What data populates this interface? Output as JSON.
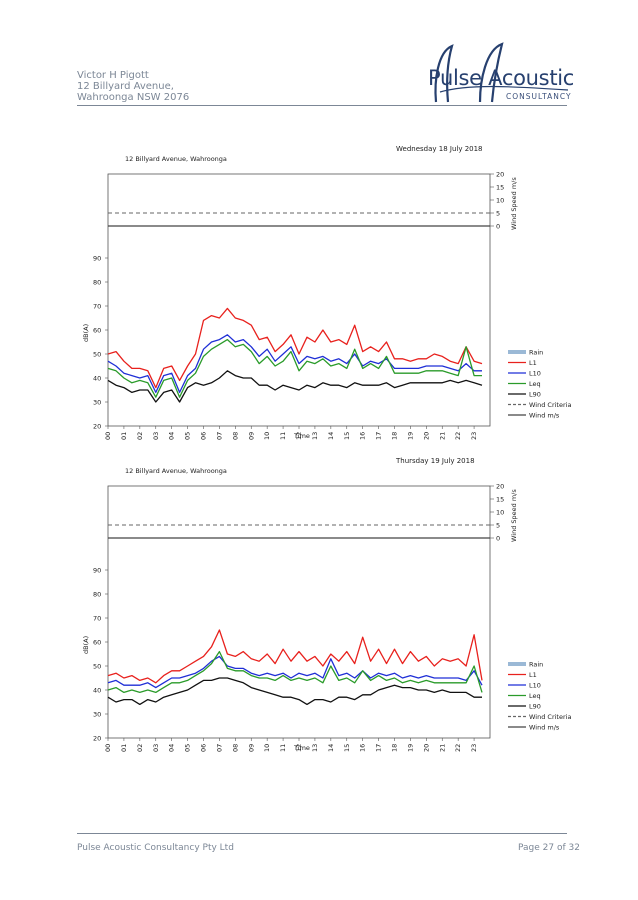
{
  "header": {
    "address_lines": [
      "Victor H Pigott",
      "12 Billyard Avenue,",
      "Wahroonga  NSW  2076"
    ],
    "logo": {
      "brand": "Pulse Acoustic",
      "sub": "CONSULTANCY"
    }
  },
  "footer": {
    "company": "Pulse Acoustic Consultancy Pty Ltd",
    "page": "Page 27 of 32"
  },
  "colors": {
    "rain": "#9bb9d6",
    "L1": "#e8211d",
    "L10": "#1f2fd6",
    "Leq": "#2a9b2a",
    "L90": "#111111",
    "wind_criteria": "#666666",
    "wind": "#444444",
    "text_muted": "#7c8796"
  },
  "chart_data": [
    {
      "type": "line",
      "title": "Wednesday 18 July 2018",
      "location": "12 Billyard Avenue, Wahroonga",
      "xlabel": "Time",
      "ylabel": "dB(A)",
      "y2label": "Wind Speed m/s",
      "ylim": [
        20,
        100
      ],
      "yticks": [
        20,
        30,
        40,
        50,
        60,
        70,
        80,
        90
      ],
      "y2lim": [
        0,
        20
      ],
      "y2ticks": [
        0,
        5,
        10,
        15,
        20
      ],
      "xticks": [
        "00",
        "01",
        "02",
        "03",
        "04",
        "05",
        "06",
        "07",
        "08",
        "09",
        "10",
        "11",
        "12",
        "13",
        "14",
        "15",
        "16",
        "17",
        "18",
        "19",
        "20",
        "21",
        "22",
        "23"
      ],
      "legend": [
        "Rain",
        "L1",
        "L10",
        "Leq",
        "L90",
        "Wind Criteria",
        "Wind m/s"
      ],
      "legend_position": "right",
      "wind_criteria": 5,
      "wind": [
        0
      ],
      "series": [
        {
          "name": "L1",
          "x": [
            0,
            0.5,
            1,
            1.5,
            2,
            2.5,
            3,
            3.5,
            4,
            4.5,
            5,
            5.5,
            6,
            6.5,
            7,
            7.5,
            8,
            8.5,
            9,
            9.5,
            10,
            10.5,
            11,
            11.5,
            12,
            12.5,
            13,
            13.5,
            14,
            14.5,
            15,
            15.5,
            16,
            16.5,
            17,
            17.5,
            18,
            18.5,
            19,
            19.5,
            20,
            20.5,
            21,
            21.5,
            22,
            22.5,
            23,
            23.5
          ],
          "values": [
            50,
            51,
            47,
            44,
            44,
            43,
            36,
            44,
            45,
            39,
            45,
            50,
            64,
            66,
            65,
            69,
            65,
            64,
            62,
            56,
            57,
            51,
            54,
            58,
            50,
            57,
            55,
            60,
            55,
            56,
            54,
            62,
            51,
            53,
            51,
            55,
            48,
            48,
            47,
            48,
            48,
            50,
            49,
            47,
            46,
            53,
            47,
            46
          ]
        },
        {
          "name": "L10",
          "x": [
            0,
            0.5,
            1,
            1.5,
            2,
            2.5,
            3,
            3.5,
            4,
            4.5,
            5,
            5.5,
            6,
            6.5,
            7,
            7.5,
            8,
            8.5,
            9,
            9.5,
            10,
            10.5,
            11,
            11.5,
            12,
            12.5,
            13,
            13.5,
            14,
            14.5,
            15,
            15.5,
            16,
            16.5,
            17,
            17.5,
            18,
            18.5,
            19,
            19.5,
            20,
            20.5,
            21,
            21.5,
            22,
            22.5,
            23,
            23.5
          ],
          "values": [
            47,
            45,
            42,
            41,
            40,
            41,
            34,
            41,
            42,
            34,
            41,
            44,
            52,
            55,
            56,
            58,
            55,
            56,
            53,
            49,
            52,
            47,
            50,
            53,
            46,
            49,
            48,
            49,
            47,
            48,
            46,
            50,
            45,
            47,
            46,
            48,
            44,
            44,
            44,
            44,
            45,
            45,
            45,
            44,
            43,
            46,
            43,
            43
          ]
        },
        {
          "name": "Leq",
          "x": [
            0,
            0.5,
            1,
            1.5,
            2,
            2.5,
            3,
            3.5,
            4,
            4.5,
            5,
            5.5,
            6,
            6.5,
            7,
            7.5,
            8,
            8.5,
            9,
            9.5,
            10,
            10.5,
            11,
            11.5,
            12,
            12.5,
            13,
            13.5,
            14,
            14.5,
            15,
            15.5,
            16,
            16.5,
            17,
            17.5,
            18,
            18.5,
            19,
            19.5,
            20,
            20.5,
            21,
            21.5,
            22,
            22.5,
            23,
            23.5
          ],
          "values": [
            44,
            43,
            40,
            38,
            39,
            38,
            32,
            39,
            40,
            32,
            39,
            42,
            49,
            52,
            54,
            56,
            53,
            54,
            51,
            46,
            49,
            45,
            47,
            51,
            43,
            47,
            46,
            48,
            45,
            46,
            44,
            52,
            44,
            46,
            44,
            49,
            42,
            42,
            42,
            42,
            43,
            43,
            43,
            42,
            41,
            53,
            41,
            41
          ]
        },
        {
          "name": "L90",
          "x": [
            0,
            0.5,
            1,
            1.5,
            2,
            2.5,
            3,
            3.5,
            4,
            4.5,
            5,
            5.5,
            6,
            6.5,
            7,
            7.5,
            8,
            8.5,
            9,
            9.5,
            10,
            10.5,
            11,
            11.5,
            12,
            12.5,
            13,
            13.5,
            14,
            14.5,
            15,
            15.5,
            16,
            16.5,
            17,
            17.5,
            18,
            18.5,
            19,
            19.5,
            20,
            20.5,
            21,
            21.5,
            22,
            22.5,
            23,
            23.5
          ],
          "values": [
            39,
            37,
            36,
            34,
            35,
            35,
            30,
            34,
            35,
            30,
            36,
            38,
            37,
            38,
            40,
            43,
            41,
            40,
            40,
            37,
            37,
            35,
            37,
            36,
            35,
            37,
            36,
            38,
            37,
            37,
            36,
            38,
            37,
            37,
            37,
            38,
            36,
            37,
            38,
            38,
            38,
            38,
            38,
            39,
            38,
            39,
            38,
            37
          ]
        }
      ]
    },
    {
      "type": "line",
      "title": "Thursday 19 July 2018",
      "location": "12 Billyard Avenue, Wahroonga",
      "xlabel": "Time",
      "ylabel": "dB(A)",
      "y2label": "Wind Speed m/s",
      "ylim": [
        20,
        100
      ],
      "yticks": [
        20,
        30,
        40,
        50,
        60,
        70,
        80,
        90
      ],
      "y2lim": [
        0,
        20
      ],
      "y2ticks": [
        0,
        5,
        10,
        15,
        20
      ],
      "xticks": [
        "00",
        "01",
        "02",
        "03",
        "04",
        "05",
        "06",
        "07",
        "08",
        "09",
        "10",
        "11",
        "12",
        "13",
        "14",
        "15",
        "16",
        "17",
        "18",
        "19",
        "20",
        "21",
        "22",
        "23"
      ],
      "legend": [
        "Rain",
        "L1",
        "L10",
        "Leq",
        "L90",
        "Wind Criteria",
        "Wind m/s"
      ],
      "legend_position": "right",
      "wind_criteria": 5,
      "wind": [
        0
      ],
      "series": [
        {
          "name": "L1",
          "x": [
            0,
            0.5,
            1,
            1.5,
            2,
            2.5,
            3,
            3.5,
            4,
            4.5,
            5,
            5.5,
            6,
            6.5,
            7,
            7.5,
            8,
            8.5,
            9,
            9.5,
            10,
            10.5,
            11,
            11.5,
            12,
            12.5,
            13,
            13.5,
            14,
            14.5,
            15,
            15.5,
            16,
            16.5,
            17,
            17.5,
            18,
            18.5,
            19,
            19.5,
            20,
            20.5,
            21,
            21.5,
            22,
            22.5,
            23,
            23.5
          ],
          "values": [
            46,
            47,
            45,
            46,
            44,
            45,
            43,
            46,
            48,
            48,
            50,
            52,
            54,
            58,
            65,
            55,
            54,
            56,
            53,
            52,
            55,
            51,
            57,
            52,
            56,
            52,
            54,
            50,
            55,
            52,
            56,
            51,
            62,
            52,
            57,
            51,
            57,
            51,
            56,
            52,
            54,
            50,
            53,
            52,
            53,
            50,
            63,
            44
          ]
        },
        {
          "name": "L10",
          "x": [
            0,
            0.5,
            1,
            1.5,
            2,
            2.5,
            3,
            3.5,
            4,
            4.5,
            5,
            5.5,
            6,
            6.5,
            7,
            7.5,
            8,
            8.5,
            9,
            9.5,
            10,
            10.5,
            11,
            11.5,
            12,
            12.5,
            13,
            13.5,
            14,
            14.5,
            15,
            15.5,
            16,
            16.5,
            17,
            17.5,
            18,
            18.5,
            19,
            19.5,
            20,
            20.5,
            21,
            21.5,
            22,
            22.5,
            23,
            23.5
          ],
          "values": [
            43,
            44,
            42,
            42,
            42,
            43,
            41,
            43,
            45,
            45,
            46,
            47,
            49,
            52,
            54,
            50,
            49,
            49,
            47,
            46,
            47,
            46,
            47,
            45,
            47,
            46,
            47,
            45,
            53,
            46,
            47,
            45,
            48,
            45,
            47,
            46,
            47,
            45,
            46,
            45,
            46,
            45,
            45,
            45,
            45,
            44,
            48,
            42
          ]
        },
        {
          "name": "Leq",
          "x": [
            0,
            0.5,
            1,
            1.5,
            2,
            2.5,
            3,
            3.5,
            4,
            4.5,
            5,
            5.5,
            6,
            6.5,
            7,
            7.5,
            8,
            8.5,
            9,
            9.5,
            10,
            10.5,
            11,
            11.5,
            12,
            12.5,
            13,
            13.5,
            14,
            14.5,
            15,
            15.5,
            16,
            16.5,
            17,
            17.5,
            18,
            18.5,
            19,
            19.5,
            20,
            20.5,
            21,
            21.5,
            22,
            22.5,
            23,
            23.5
          ],
          "values": [
            40,
            41,
            39,
            40,
            39,
            40,
            39,
            41,
            43,
            43,
            44,
            46,
            48,
            51,
            56,
            49,
            48,
            48,
            46,
            45,
            45,
            44,
            46,
            44,
            45,
            44,
            45,
            43,
            50,
            44,
            45,
            43,
            48,
            44,
            46,
            44,
            45,
            43,
            44,
            43,
            44,
            43,
            43,
            43,
            43,
            43,
            50,
            39
          ]
        },
        {
          "name": "L90",
          "x": [
            0,
            0.5,
            1,
            1.5,
            2,
            2.5,
            3,
            3.5,
            4,
            4.5,
            5,
            5.5,
            6,
            6.5,
            7,
            7.5,
            8,
            8.5,
            9,
            9.5,
            10,
            10.5,
            11,
            11.5,
            12,
            12.5,
            13,
            13.5,
            14,
            14.5,
            15,
            15.5,
            16,
            16.5,
            17,
            17.5,
            18,
            18.5,
            19,
            19.5,
            20,
            20.5,
            21,
            21.5,
            22,
            22.5,
            23,
            23.5
          ],
          "values": [
            37,
            35,
            36,
            36,
            34,
            36,
            35,
            37,
            38,
            39,
            40,
            42,
            44,
            44,
            45,
            45,
            44,
            43,
            41,
            40,
            39,
            38,
            37,
            37,
            36,
            34,
            36,
            36,
            35,
            37,
            37,
            36,
            38,
            38,
            40,
            41,
            42,
            41,
            41,
            40,
            40,
            39,
            40,
            39,
            39,
            39,
            37,
            37
          ]
        }
      ]
    }
  ]
}
